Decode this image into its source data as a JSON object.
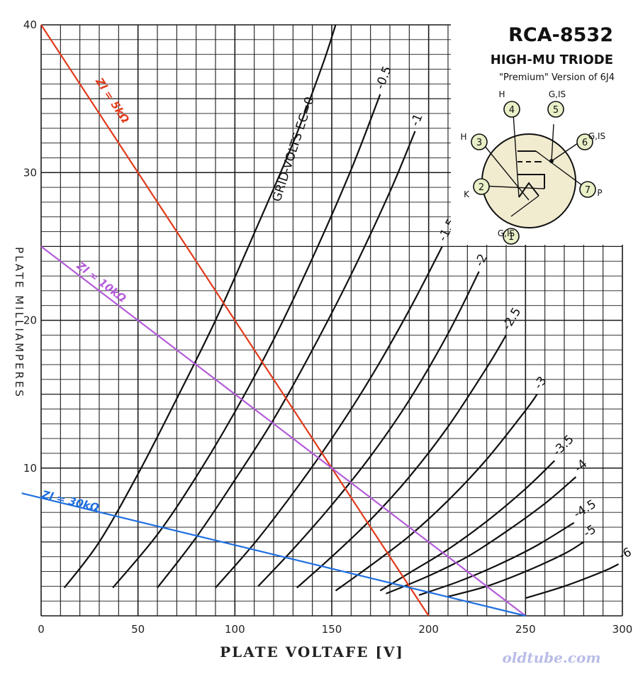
{
  "chart_data": {
    "type": "line",
    "xlabel": "PLATE VOLTAFE [V]",
    "ylabel": "PLATE MILLIAMPERES",
    "xlim": [
      0,
      300
    ],
    "ylim": [
      0,
      40
    ],
    "x_ticks": [
      "0",
      "50",
      "100",
      "150",
      "200",
      "250",
      "300"
    ],
    "y_ticks": [
      "10",
      "20",
      "30",
      "40"
    ],
    "grid": true,
    "series": [
      {
        "name": "GRID-VOLTS EC=0",
        "points": [
          [
            12,
            1.9
          ],
          [
            30,
            5.0
          ],
          [
            50,
            9.6
          ],
          [
            70,
            14.7
          ],
          [
            90,
            20.0
          ],
          [
            110,
            25.9
          ],
          [
            130,
            32.0
          ],
          [
            145,
            37.2
          ],
          [
            152,
            40.0
          ]
        ]
      },
      {
        "name": "-0.5",
        "points": [
          [
            37,
            1.9
          ],
          [
            60,
            5.5
          ],
          [
            80,
            9.4
          ],
          [
            100,
            13.8
          ],
          [
            120,
            18.7
          ],
          [
            140,
            24.2
          ],
          [
            160,
            30.2
          ],
          [
            175,
            35.3
          ]
        ]
      },
      {
        "name": "-1",
        "points": [
          [
            60,
            1.9
          ],
          [
            80,
            5.3
          ],
          [
            100,
            9.2
          ],
          [
            120,
            13.3
          ],
          [
            140,
            18.0
          ],
          [
            160,
            23.1
          ],
          [
            180,
            28.7
          ],
          [
            193,
            32.8
          ]
        ]
      },
      {
        "name": "-1.5",
        "points": [
          [
            90,
            1.9
          ],
          [
            110,
            4.9
          ],
          [
            130,
            8.3
          ],
          [
            150,
            12.0
          ],
          [
            170,
            16.1
          ],
          [
            190,
            20.7
          ],
          [
            207,
            25.0
          ]
        ]
      },
      {
        "name": "-2",
        "points": [
          [
            112,
            2.0
          ],
          [
            130,
            4.5
          ],
          [
            150,
            7.5
          ],
          [
            170,
            10.8
          ],
          [
            190,
            14.6
          ],
          [
            210,
            19.1
          ],
          [
            226,
            23.3
          ]
        ]
      },
      {
        "name": "-2.5",
        "points": [
          [
            132,
            1.9
          ],
          [
            150,
            4.0
          ],
          [
            170,
            6.5
          ],
          [
            190,
            9.4
          ],
          [
            210,
            12.8
          ],
          [
            230,
            16.8
          ],
          [
            240,
            19.0
          ]
        ]
      },
      {
        "name": "-3",
        "points": [
          [
            152,
            1.7
          ],
          [
            170,
            3.4
          ],
          [
            190,
            5.4
          ],
          [
            210,
            7.8
          ],
          [
            230,
            10.6
          ],
          [
            250,
            13.9
          ],
          [
            256,
            15.0
          ]
        ]
      },
      {
        "name": "-3.5",
        "points": [
          [
            175,
            1.7
          ],
          [
            190,
            2.9
          ],
          [
            210,
            4.5
          ],
          [
            230,
            6.4
          ],
          [
            250,
            8.6
          ],
          [
            265,
            10.5
          ]
        ]
      },
      {
        "name": "-4",
        "points": [
          [
            178,
            1.5
          ],
          [
            200,
            2.7
          ],
          [
            220,
            4.0
          ],
          [
            240,
            5.7
          ],
          [
            260,
            7.6
          ],
          [
            276,
            9.4
          ]
        ]
      },
      {
        "name": "-4.5",
        "points": [
          [
            195,
            1.4
          ],
          [
            215,
            2.3
          ],
          [
            235,
            3.4
          ],
          [
            255,
            4.7
          ],
          [
            275,
            6.3
          ]
        ]
      },
      {
        "name": "-5",
        "points": [
          [
            210,
            1.3
          ],
          [
            230,
            2.0
          ],
          [
            250,
            3.0
          ],
          [
            270,
            4.2
          ],
          [
            280,
            5.0
          ]
        ]
      },
      {
        "name": "-6",
        "points": [
          [
            250,
            1.2
          ],
          [
            270,
            2.0
          ],
          [
            290,
            3.0
          ],
          [
            298,
            3.5
          ]
        ]
      }
    ],
    "load_lines": [
      {
        "label": "Zl = 5kΩ",
        "color": "#e23a1a",
        "points": [
          [
            0,
            40
          ],
          [
            200,
            0
          ]
        ]
      },
      {
        "label": "Zl = 10kΩ",
        "color": "#b45bd9",
        "points": [
          [
            0,
            25
          ],
          [
            250,
            0
          ]
        ]
      },
      {
        "label": "Zl = 30kΩ",
        "color": "#1f6fe0",
        "points": [
          [
            -10,
            8.3
          ],
          [
            250,
            0
          ]
        ]
      }
    ]
  },
  "tube": {
    "name": "RCA-8532",
    "type": "HIGH-MU TRIODE",
    "note": "\"Premium\" Version of 6J4",
    "pins": [
      "1",
      "2",
      "3",
      "4",
      "5",
      "6",
      "7"
    ],
    "pin_labels": [
      "G,IS",
      "K",
      "H",
      "H",
      "G,IS",
      "G,IS",
      "P"
    ]
  },
  "watermark": "oldtube.com"
}
